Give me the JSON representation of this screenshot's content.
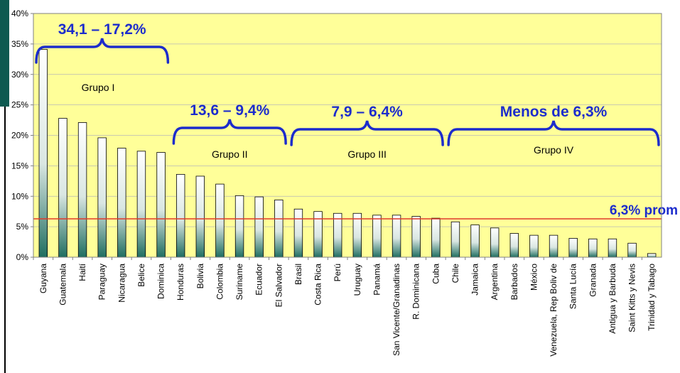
{
  "chart_data": {
    "type": "bar",
    "categories": [
      "Guyana",
      "Guatemala",
      "Haití",
      "Paraguay",
      "Nicaragua",
      "Belice",
      "Dominica",
      "Honduras",
      "Bolivia",
      "Colombia",
      "Suriname",
      "Ecuador",
      "El Salvador",
      "Brasil",
      "Costa Rica",
      "Perú",
      "Uruguay",
      "Panamá",
      "San Vicente/Granadinas",
      "R. Dominicana",
      "Cuba",
      "Chile",
      "Jamaica",
      "Argentina",
      "Barbados",
      "México",
      "Venezuela, Rep Boliv de",
      "Santa Lucía",
      "Granada",
      "Antigua y Barbuda",
      "Saint Kitts y Nevis",
      "Trinidad y Tabago"
    ],
    "values": [
      34.1,
      22.8,
      22.1,
      19.6,
      17.9,
      17.4,
      17.2,
      13.6,
      13.3,
      12.0,
      10.1,
      9.9,
      9.4,
      7.9,
      7.5,
      7.2,
      7.2,
      6.9,
      6.9,
      6.7,
      6.4,
      5.8,
      5.3,
      4.8,
      3.9,
      3.6,
      3.6,
      3.1,
      3.0,
      3.0,
      2.3,
      0.6
    ],
    "ylim": [
      0,
      40
    ],
    "yticks": [
      "0%",
      "5%",
      "10%",
      "15%",
      "20%",
      "25%",
      "30%",
      "35%",
      "40%"
    ],
    "grid": true,
    "average_line": {
      "value": 6.3,
      "label": "6,3% prom",
      "color": "#e03a2a"
    },
    "groups": [
      {
        "label": "Grupo I",
        "range_label": "34,1 – 17,2%",
        "start": 0,
        "end": 6
      },
      {
        "label": "Grupo II",
        "range_label": "13,6 – 9,4%",
        "start": 7,
        "end": 12
      },
      {
        "label": "Grupo III",
        "range_label": "7,9 – 6,4%",
        "start": 13,
        "end": 20
      },
      {
        "label": "Grupo IV",
        "range_label": "Menos de 6,3%",
        "start": 21,
        "end": 31
      }
    ],
    "colors": {
      "plot_background": "#ffff99",
      "bar_top": "#ffffff",
      "bar_bottom": "#1f6e60",
      "brace": "#1c2ccc",
      "side_panel": "#0d5a50"
    }
  }
}
